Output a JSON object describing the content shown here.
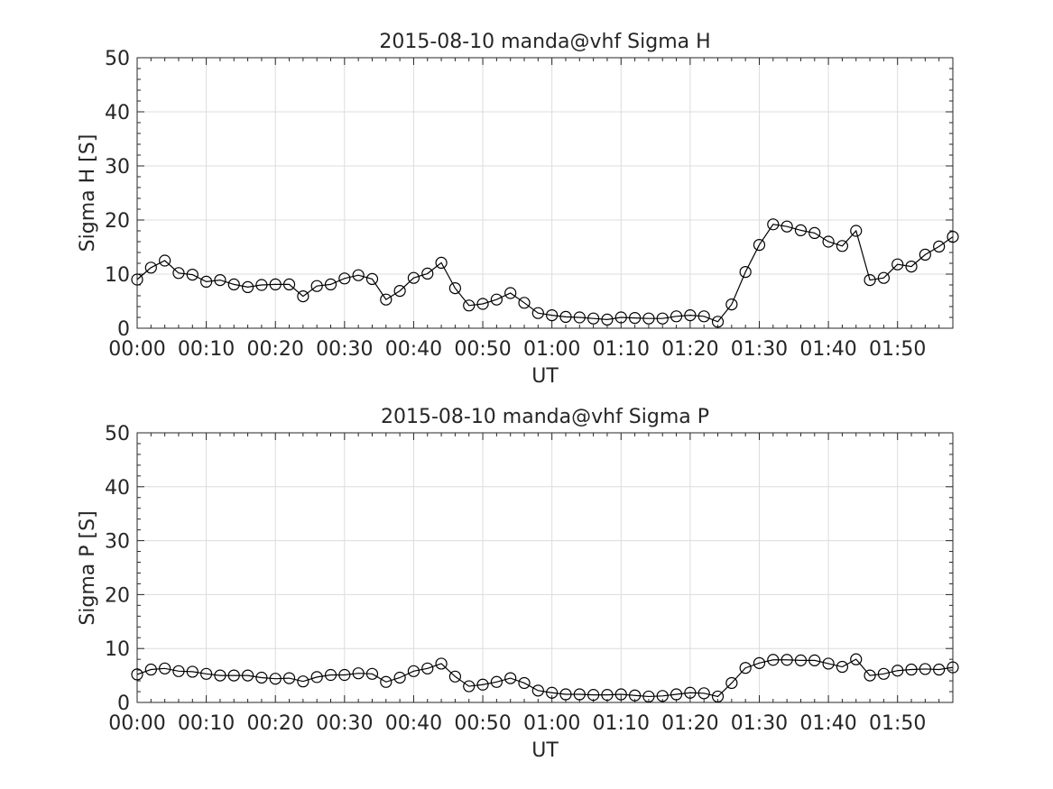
{
  "chart_data": [
    {
      "type": "line",
      "title": "2015-08-10  manda@vhf Sigma H",
      "xlabel": "UT",
      "ylabel": "Sigma H [S]",
      "xlim": [
        "00:00",
        "01:58"
      ],
      "ylim": [
        0,
        50
      ],
      "grid": true,
      "x_ticks": [
        "00:00",
        "00:10",
        "00:20",
        "00:30",
        "00:40",
        "00:50",
        "01:00",
        "01:10",
        "01:20",
        "01:30",
        "01:40",
        "01:50"
      ],
      "y_ticks": [
        0,
        10,
        20,
        30,
        40,
        50
      ],
      "marker": "open-circle",
      "color": "#000000",
      "x": [
        "00:00",
        "00:02",
        "00:04",
        "00:06",
        "00:08",
        "00:10",
        "00:12",
        "00:14",
        "00:16",
        "00:18",
        "00:20",
        "00:22",
        "00:24",
        "00:26",
        "00:28",
        "00:30",
        "00:32",
        "00:34",
        "00:36",
        "00:38",
        "00:40",
        "00:42",
        "00:44",
        "00:46",
        "00:48",
        "00:50",
        "00:52",
        "00:54",
        "00:56",
        "00:58",
        "01:00",
        "01:02",
        "01:04",
        "01:06",
        "01:08",
        "01:10",
        "01:12",
        "01:14",
        "01:16",
        "01:18",
        "01:20",
        "01:22",
        "01:24",
        "01:26",
        "01:28",
        "01:30",
        "01:32",
        "01:34",
        "01:36",
        "01:38",
        "01:40",
        "01:42",
        "01:44",
        "01:46",
        "01:48",
        "01:50",
        "01:52",
        "01:54",
        "01:56",
        "01:58"
      ],
      "values": [
        9.0,
        11.2,
        12.5,
        10.2,
        9.9,
        8.6,
        8.9,
        8.1,
        7.6,
        8.0,
        8.1,
        8.1,
        5.9,
        7.8,
        8.1,
        9.2,
        9.8,
        9.1,
        5.3,
        6.9,
        9.3,
        10.1,
        12.1,
        7.4,
        4.2,
        4.5,
        5.3,
        6.5,
        4.7,
        2.8,
        2.4,
        2.1,
        2.0,
        1.8,
        1.6,
        2.0,
        1.9,
        1.8,
        1.8,
        2.2,
        2.4,
        2.2,
        1.2,
        4.4,
        10.4,
        15.4,
        19.2,
        18.8,
        18.1,
        17.6,
        16.0,
        15.2,
        18.0,
        8.9,
        9.3,
        11.8,
        11.4,
        13.6,
        15.1,
        16.9
      ]
    },
    {
      "type": "line",
      "title": "2015-08-10  manda@vhf Sigma P",
      "xlabel": "UT",
      "ylabel": "Sigma P [S]",
      "xlim": [
        "00:00",
        "01:58"
      ],
      "ylim": [
        0,
        50
      ],
      "grid": true,
      "x_ticks": [
        "00:00",
        "00:10",
        "00:20",
        "00:30",
        "00:40",
        "00:50",
        "01:00",
        "01:10",
        "01:20",
        "01:30",
        "01:40",
        "01:50"
      ],
      "y_ticks": [
        0,
        10,
        20,
        30,
        40,
        50
      ],
      "marker": "open-circle",
      "color": "#000000",
      "x": [
        "00:00",
        "00:02",
        "00:04",
        "00:06",
        "00:08",
        "00:10",
        "00:12",
        "00:14",
        "00:16",
        "00:18",
        "00:20",
        "00:22",
        "00:24",
        "00:26",
        "00:28",
        "00:30",
        "00:32",
        "00:34",
        "00:36",
        "00:38",
        "00:40",
        "00:42",
        "00:44",
        "00:46",
        "00:48",
        "00:50",
        "00:52",
        "00:54",
        "00:56",
        "00:58",
        "01:00",
        "01:02",
        "01:04",
        "01:06",
        "01:08",
        "01:10",
        "01:12",
        "01:14",
        "01:16",
        "01:18",
        "01:20",
        "01:22",
        "01:24",
        "01:26",
        "01:28",
        "01:30",
        "01:32",
        "01:34",
        "01:36",
        "01:38",
        "01:40",
        "01:42",
        "01:44",
        "01:46",
        "01:48",
        "01:50",
        "01:52",
        "01:54",
        "01:56",
        "01:58"
      ],
      "values": [
        5.2,
        6.1,
        6.3,
        5.8,
        5.7,
        5.3,
        5.0,
        5.0,
        5.0,
        4.6,
        4.4,
        4.5,
        3.9,
        4.7,
        5.1,
        5.1,
        5.4,
        5.3,
        3.8,
        4.6,
        5.8,
        6.3,
        7.2,
        4.8,
        3.0,
        3.3,
        3.8,
        4.5,
        3.6,
        2.2,
        1.8,
        1.5,
        1.5,
        1.4,
        1.4,
        1.5,
        1.3,
        1.1,
        1.2,
        1.5,
        1.8,
        1.7,
        1.1,
        3.6,
        6.4,
        7.3,
        7.9,
        7.9,
        7.8,
        7.8,
        7.2,
        6.6,
        8.0,
        5.0,
        5.3,
        5.9,
        6.1,
        6.2,
        6.1,
        6.5
      ]
    }
  ]
}
